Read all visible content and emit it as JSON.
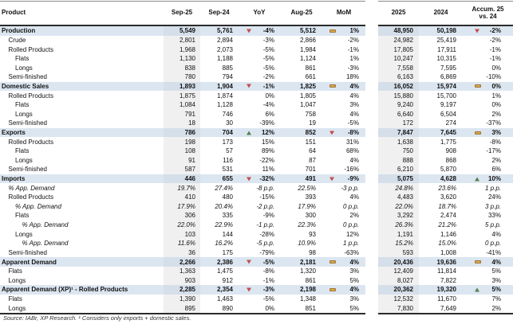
{
  "header": {
    "product": "Product",
    "sep25": "Sep-25",
    "sep24": "Sep-24",
    "yoy": "YoY",
    "aug25": "Aug-25",
    "mom": "MoM",
    "y2025": "2025",
    "y2024": "2024",
    "accum1": "Accum. 25",
    "accum2": "vs. 24"
  },
  "colors": {
    "down": "#C0504D",
    "up": "#53814F",
    "dash": "#DFA44D",
    "dash_border": "#9A7734",
    "highlight": "#DCE6F1",
    "highlight_shade": "#D5DFEA",
    "col_shade": "#F0F0F0"
  },
  "rows": [
    {
      "label": "Production",
      "lvl": 0,
      "sec": true,
      "s25": "5,549",
      "s24": "5,761",
      "yoy": "-4%",
      "iy": "down",
      "a25": "5,512",
      "mom": "1%",
      "im": "dash",
      "y25": "48,950",
      "y24": "50,198",
      "ac": "-2%",
      "ia": "down"
    },
    {
      "label": "Crude",
      "lvl": 1,
      "s25": "2,801",
      "s24": "2,894",
      "yoy": "-3%",
      "a25": "2,866",
      "mom": "-2%",
      "y25": "24,982",
      "y24": "25,419",
      "ac": "-2%"
    },
    {
      "label": "Rolled Products",
      "lvl": 1,
      "s25": "1,968",
      "s24": "2,073",
      "yoy": "-5%",
      "a25": "1,984",
      "mom": "-1%",
      "y25": "17,805",
      "y24": "17,911",
      "ac": "-1%"
    },
    {
      "label": "Flats",
      "lvl": 2,
      "s25": "1,130",
      "s24": "1,188",
      "yoy": "-5%",
      "a25": "1,124",
      "mom": "1%",
      "y25": "10,247",
      "y24": "10,315",
      "ac": "-1%"
    },
    {
      "label": "Longs",
      "lvl": 2,
      "s25": "838",
      "s24": "885",
      "yoy": "-5%",
      "a25": "861",
      "mom": "-3%",
      "y25": "7,558",
      "y24": "7,595",
      "ac": "0%"
    },
    {
      "label": "Semi-finished",
      "lvl": 1,
      "s25": "780",
      "s24": "794",
      "yoy": "-2%",
      "a25": "661",
      "mom": "18%",
      "y25": "6,163",
      "y24": "6,869",
      "ac": "-10%"
    },
    {
      "label": "Domestic Sales",
      "lvl": 0,
      "sec": true,
      "s25": "1,893",
      "s24": "1,904",
      "yoy": "-1%",
      "iy": "down",
      "a25": "1,825",
      "mom": "4%",
      "im": "dash",
      "y25": "16,052",
      "y24": "15,974",
      "ac": "0%",
      "ia": "dash"
    },
    {
      "label": "Rolled Products",
      "lvl": 1,
      "s25": "1,875",
      "s24": "1,874",
      "yoy": "0%",
      "a25": "1,805",
      "mom": "4%",
      "y25": "15,880",
      "y24": "15,700",
      "ac": "1%"
    },
    {
      "label": "Flats",
      "lvl": 2,
      "s25": "1,084",
      "s24": "1,128",
      "yoy": "-4%",
      "a25": "1,047",
      "mom": "3%",
      "y25": "9,240",
      "y24": "9,197",
      "ac": "0%"
    },
    {
      "label": "Longs",
      "lvl": 2,
      "s25": "791",
      "s24": "746",
      "yoy": "6%",
      "a25": "758",
      "mom": "4%",
      "y25": "6,640",
      "y24": "6,504",
      "ac": "2%"
    },
    {
      "label": "Semi-finished",
      "lvl": 1,
      "s25": "18",
      "s24": "30",
      "yoy": "-39%",
      "a25": "19",
      "mom": "-5%",
      "y25": "172",
      "y24": "274",
      "ac": "-37%"
    },
    {
      "label": "Exports",
      "lvl": 0,
      "sec": true,
      "s25": "786",
      "s24": "704",
      "yoy": "12%",
      "iy": "up",
      "a25": "852",
      "mom": "-8%",
      "im": "down",
      "y25": "7,847",
      "y24": "7,645",
      "ac": "3%",
      "ia": "dash"
    },
    {
      "label": "Rolled Products",
      "lvl": 1,
      "s25": "198",
      "s24": "173",
      "yoy": "15%",
      "a25": "151",
      "mom": "31%",
      "y25": "1,638",
      "y24": "1,775",
      "ac": "-8%"
    },
    {
      "label": "Flats",
      "lvl": 2,
      "s25": "108",
      "s24": "57",
      "yoy": "89%",
      "a25": "64",
      "mom": "68%",
      "y25": "750",
      "y24": "908",
      "ac": "-17%"
    },
    {
      "label": "Longs",
      "lvl": 2,
      "s25": "91",
      "s24": "116",
      "yoy": "-22%",
      "a25": "87",
      "mom": "4%",
      "y25": "888",
      "y24": "868",
      "ac": "2%"
    },
    {
      "label": "Semi-finished",
      "lvl": 1,
      "s25": "587",
      "s24": "531",
      "yoy": "11%",
      "a25": "701",
      "mom": "-16%",
      "y25": "6,210",
      "y24": "5,870",
      "ac": "6%"
    },
    {
      "label": "Imports",
      "lvl": 0,
      "sec": true,
      "s25": "446",
      "s24": "655",
      "yoy": "-32%",
      "iy": "down",
      "a25": "491",
      "mom": "-9%",
      "im": "down",
      "y25": "5,075",
      "y24": "4,628",
      "ac": "10%",
      "ia": "up"
    },
    {
      "label": "% App. Demand",
      "lvl": 1,
      "ital": true,
      "s25": "19.7%",
      "s24": "27.4%",
      "yoy": "-8 p.p.",
      "a25": "22.5%",
      "mom": "-3 p.p.",
      "y25": "24.8%",
      "y24": "23.6%",
      "ac": "1 p.p."
    },
    {
      "label": "Rolled Products",
      "lvl": 1,
      "s25": "410",
      "s24": "480",
      "yoy": "-15%",
      "a25": "393",
      "mom": "4%",
      "y25": "4,483",
      "y24": "3,620",
      "ac": "24%"
    },
    {
      "label": "% App. Demand",
      "lvl": 2,
      "ital": true,
      "s25": "17.9%",
      "s24": "20.4%",
      "yoy": "-2 p.p.",
      "a25": "17.9%",
      "mom": "0 p.p.",
      "y25": "22.0%",
      "y24": "18.7%",
      "ac": "3 p.p."
    },
    {
      "label": "Flats",
      "lvl": 2,
      "s25": "306",
      "s24": "335",
      "yoy": "-9%",
      "a25": "300",
      "mom": "2%",
      "y25": "3,292",
      "y24": "2,474",
      "ac": "33%"
    },
    {
      "label": "% App. Demand",
      "lvl": 3,
      "ital": true,
      "s25": "22.0%",
      "s24": "22.9%",
      "yoy": "-1 p.p.",
      "a25": "22.3%",
      "mom": "0 p.p.",
      "y25": "26.3%",
      "y24": "21.2%",
      "ac": "5 p.p."
    },
    {
      "label": "Longs",
      "lvl": 2,
      "s25": "103",
      "s24": "144",
      "yoy": "-28%",
      "a25": "93",
      "mom": "12%",
      "y25": "1,191",
      "y24": "1,146",
      "ac": "4%"
    },
    {
      "label": "% App. Demand",
      "lvl": 3,
      "ital": true,
      "s25": "11.6%",
      "s24": "16.2%",
      "yoy": "-5 p.p.",
      "a25": "10.9%",
      "mom": "1 p.p.",
      "y25": "15.2%",
      "y24": "15.0%",
      "ac": "0 p.p."
    },
    {
      "label": "Semi-finished",
      "lvl": 1,
      "s25": "36",
      "s24": "175",
      "yoy": "-79%",
      "a25": "98",
      "mom": "-63%",
      "y25": "593",
      "y24": "1,008",
      "ac": "-41%"
    },
    {
      "label": "Apparent Demand",
      "lvl": 0,
      "sec": true,
      "s25": "2,266",
      "s24": "2,386",
      "yoy": "-5%",
      "iy": "down",
      "a25": "2,181",
      "mom": "4%",
      "im": "dash",
      "y25": "20,436",
      "y24": "19,636",
      "ac": "4%",
      "ia": "dash"
    },
    {
      "label": "Flats",
      "lvl": 1,
      "s25": "1,363",
      "s24": "1,475",
      "yoy": "-8%",
      "a25": "1,320",
      "mom": "3%",
      "y25": "12,409",
      "y24": "11,814",
      "ac": "5%"
    },
    {
      "label": "Longs",
      "lvl": 1,
      "s25": "903",
      "s24": "912",
      "yoy": "-1%",
      "a25": "861",
      "mom": "5%",
      "y25": "8,027",
      "y24": "7,822",
      "ac": "3%"
    },
    {
      "label": "Apparent Demand (XP)¹ - Rolled Products",
      "lvl": 0,
      "sec": true,
      "s25": "2,285",
      "s24": "2,354",
      "yoy": "-3%",
      "iy": "down",
      "a25": "2,198",
      "mom": "4%",
      "im": "dash",
      "y25": "20,362",
      "y24": "19,320",
      "ac": "5%",
      "ia": "up"
    },
    {
      "label": "Flats",
      "lvl": 1,
      "s25": "1,390",
      "s24": "1,463",
      "yoy": "-5%",
      "a25": "1,348",
      "mom": "3%",
      "y25": "12,532",
      "y24": "11,670",
      "ac": "7%"
    },
    {
      "label": "Longs",
      "lvl": 1,
      "s25": "895",
      "s24": "890",
      "yoy": "0%",
      "a25": "851",
      "mom": "5%",
      "y25": "7,830",
      "y24": "7,649",
      "ac": "2%"
    }
  ],
  "footer": {
    "source": "Source: IABr, XP Research. ¹ Considers only imports + domestic sales."
  }
}
